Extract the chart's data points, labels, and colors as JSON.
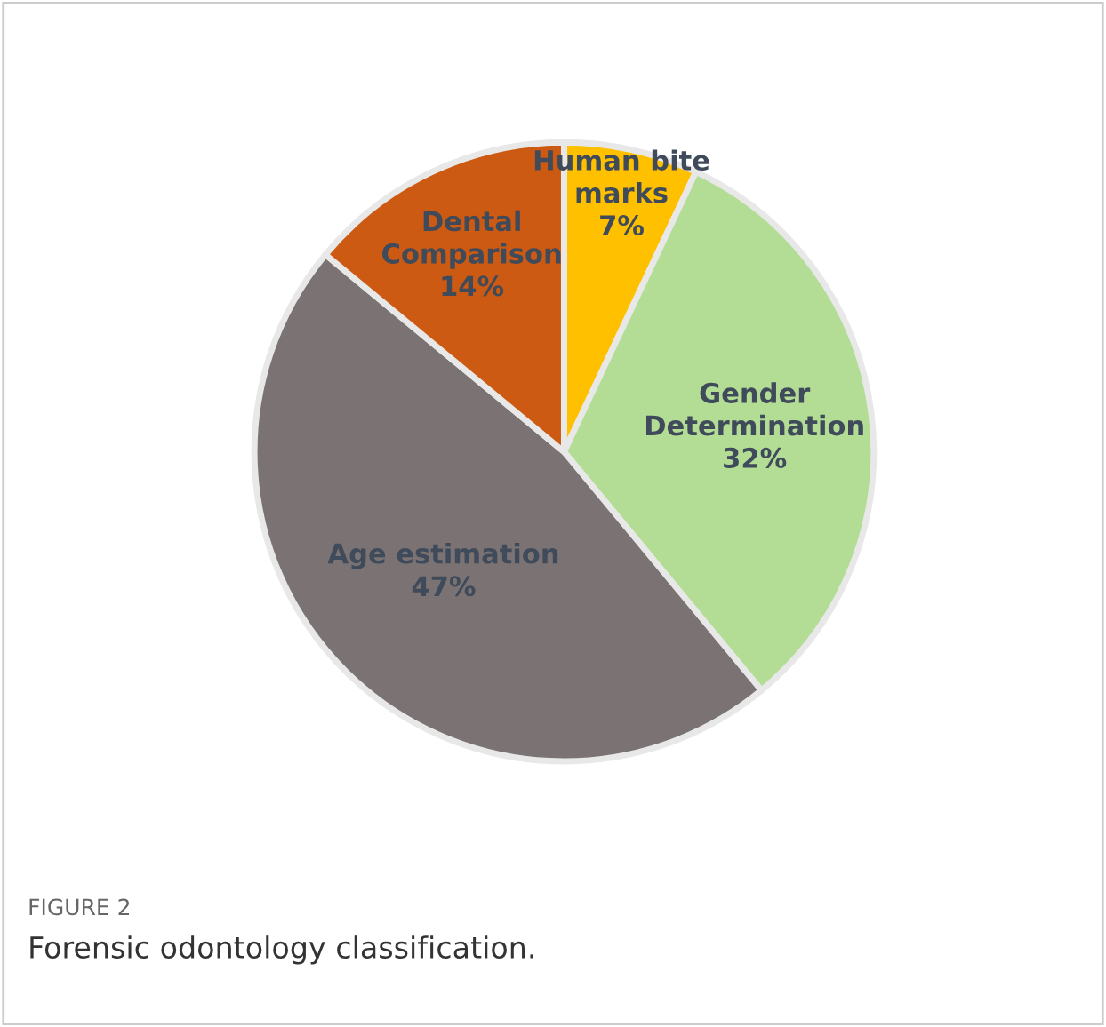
{
  "chart_data": {
    "type": "pie",
    "categories": [
      "Human bite\nmarks",
      "Gender\nDetermination",
      "Age estimation",
      "Dental\nComparison"
    ],
    "values": [
      7,
      32,
      47,
      14
    ],
    "value_labels": [
      "7%",
      "32%",
      "47%",
      "14%"
    ],
    "colors": [
      "#ffc000",
      "#b3dc94",
      "#7b7373",
      "#cc5a12"
    ],
    "annotations": [
      "FIGURE 2",
      "Forensic odontology classification."
    ]
  }
}
